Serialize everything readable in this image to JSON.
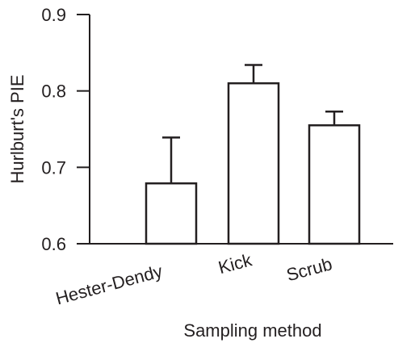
{
  "chart_data": {
    "type": "bar",
    "title": "",
    "xlabel": "Sampling method",
    "ylabel": "Hurlburt's PIE",
    "ylim": [
      0.6,
      0.9
    ],
    "yticks": [
      0.6,
      0.7,
      0.8,
      0.9
    ],
    "ytick_labels": [
      "0.6",
      "0.7",
      "0.8",
      "0.9"
    ],
    "categories": [
      "Hester-Dendy",
      "Kick",
      "Scrub"
    ],
    "values": [
      0.679,
      0.81,
      0.755
    ],
    "error_upper": [
      0.06,
      0.024,
      0.018
    ],
    "grid": false,
    "bar_fill": "#ffffff",
    "ink_color": "#231f20"
  }
}
